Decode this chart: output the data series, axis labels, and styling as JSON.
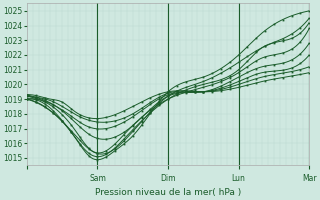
{
  "xlabel": "Pression niveau de la mer( hPa )",
  "ylim": [
    1014.5,
    1025.5
  ],
  "xlim": [
    0,
    96
  ],
  "yticks": [
    1015,
    1016,
    1017,
    1018,
    1019,
    1020,
    1021,
    1022,
    1023,
    1024,
    1025
  ],
  "day_ticks": [
    0,
    24,
    48,
    72,
    96
  ],
  "day_labels": [
    "",
    "Sam",
    "Dim",
    "Lun",
    "Mar"
  ],
  "background_color": "#cfe8e0",
  "grid_color_minor": "#b8d8d0",
  "grid_color_major": "#b8d8d0",
  "line_color": "#1a5c2a",
  "marker_color": "#1a5c2a",
  "tick_label_color": "#1a5c2a",
  "series": [
    {
      "x": [
        0,
        8,
        16,
        22,
        30,
        36,
        48,
        60,
        72,
        80,
        88,
        96
      ],
      "y": [
        1019.0,
        1018.2,
        1016.5,
        1015.0,
        1015.5,
        1016.5,
        1019.5,
        1020.5,
        1022.0,
        1023.5,
        1024.5,
        1025.0
      ]
    },
    {
      "x": [
        0,
        6,
        12,
        18,
        24,
        36,
        48,
        60,
        72,
        80,
        88,
        96
      ],
      "y": [
        1019.0,
        1018.5,
        1017.5,
        1016.2,
        1015.3,
        1016.8,
        1019.2,
        1020.2,
        1021.5,
        1022.5,
        1023.2,
        1024.5
      ]
    },
    {
      "x": [
        0,
        5,
        10,
        16,
        22,
        34,
        48,
        60,
        72,
        80,
        88,
        96
      ],
      "y": [
        1019.0,
        1018.8,
        1018.0,
        1016.5,
        1015.2,
        1016.5,
        1019.0,
        1020.0,
        1021.0,
        1022.5,
        1023.0,
        1024.2
      ]
    },
    {
      "x": [
        0,
        5,
        10,
        16,
        22,
        34,
        48,
        60,
        72,
        80,
        88,
        96
      ],
      "y": [
        1019.0,
        1018.9,
        1018.3,
        1017.0,
        1015.5,
        1016.8,
        1019.0,
        1019.8,
        1020.8,
        1021.8,
        1022.2,
        1023.8
      ]
    },
    {
      "x": [
        0,
        5,
        10,
        16,
        22,
        36,
        48,
        60,
        72,
        80,
        88,
        96
      ],
      "y": [
        1019.2,
        1019.0,
        1018.5,
        1017.5,
        1016.5,
        1017.2,
        1019.2,
        1019.5,
        1020.5,
        1021.2,
        1021.5,
        1022.8
      ]
    },
    {
      "x": [
        0,
        4,
        8,
        14,
        20,
        36,
        48,
        60,
        72,
        80,
        88,
        96
      ],
      "y": [
        1019.2,
        1019.0,
        1018.7,
        1018.0,
        1017.2,
        1017.8,
        1019.3,
        1019.5,
        1020.2,
        1020.8,
        1021.0,
        1022.0
      ]
    },
    {
      "x": [
        0,
        4,
        8,
        12,
        18,
        36,
        48,
        60,
        72,
        80,
        88,
        96
      ],
      "y": [
        1019.3,
        1019.1,
        1018.9,
        1018.5,
        1017.8,
        1018.0,
        1019.4,
        1019.5,
        1020.0,
        1020.5,
        1020.8,
        1021.2
      ]
    },
    {
      "x": [
        0,
        4,
        8,
        12,
        16,
        36,
        48,
        60,
        72,
        80,
        88,
        96
      ],
      "y": [
        1019.3,
        1019.2,
        1019.0,
        1018.8,
        1018.2,
        1018.5,
        1019.5,
        1019.5,
        1019.8,
        1020.2,
        1020.5,
        1020.8
      ]
    }
  ]
}
